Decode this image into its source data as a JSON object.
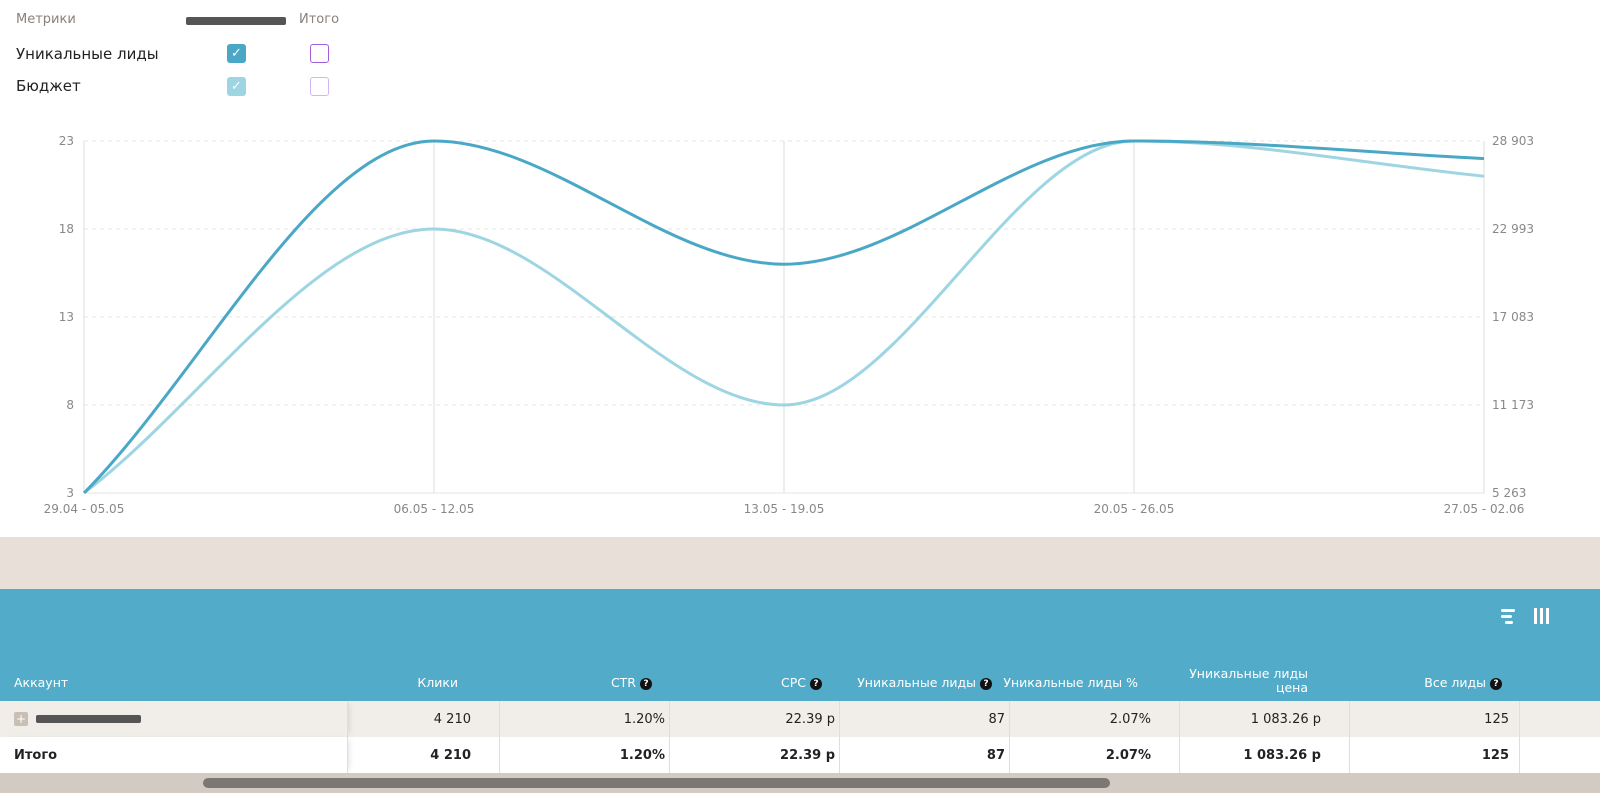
{
  "legend": {
    "header_metrics": "Метрики",
    "header_total": "Итого",
    "rows": [
      {
        "label": "Уникальные лиды",
        "account_checked": true,
        "total_checked": false,
        "color": "#4aa8c6"
      },
      {
        "label": "Бюджет",
        "account_checked": true,
        "total_checked": false,
        "color": "#9ed5e3"
      }
    ]
  },
  "chart_data": {
    "type": "line",
    "categories": [
      "29.04 - 05.05",
      "06.05 - 12.05",
      "13.05 - 19.05",
      "20.05 - 26.05",
      "27.05 - 02.06"
    ],
    "left_ticks": [
      "3",
      "8",
      "13",
      "18",
      "23"
    ],
    "left_range": [
      3,
      23
    ],
    "right_ticks": [
      "5 263",
      "11 173",
      "17 083",
      "22 993",
      "28 903"
    ],
    "right_range": [
      5263,
      28903
    ],
    "series": [
      {
        "name": "Уникальные лиды",
        "axis": "left",
        "color": "#4aa8c6",
        "values": [
          3,
          23,
          16,
          23,
          22
        ]
      },
      {
        "name": "Бюджет",
        "axis": "right",
        "color": "#9ed5e3",
        "values": [
          5263,
          22993,
          11173,
          28903,
          26539
        ]
      }
    ]
  },
  "table": {
    "columns": [
      "Аккаунт",
      "Клики",
      "CTR",
      "CPC",
      "Уникальные лиды",
      "Уникальные лиды %",
      "Уникальные лиды цена",
      "Все лиды"
    ],
    "help": [
      false,
      false,
      true,
      true,
      true,
      false,
      false,
      true
    ],
    "rows": [
      {
        "values": [
          "",
          "4 210",
          "1.20%",
          "22.39 р",
          "87",
          "2.07%",
          "1 083.26 р",
          "125"
        ]
      },
      {
        "values": [
          "Итого",
          "4 210",
          "1.20%",
          "22.39 р",
          "87",
          "2.07%",
          "1 083.26 р",
          "125"
        ]
      }
    ],
    "help_glyph": "?"
  }
}
